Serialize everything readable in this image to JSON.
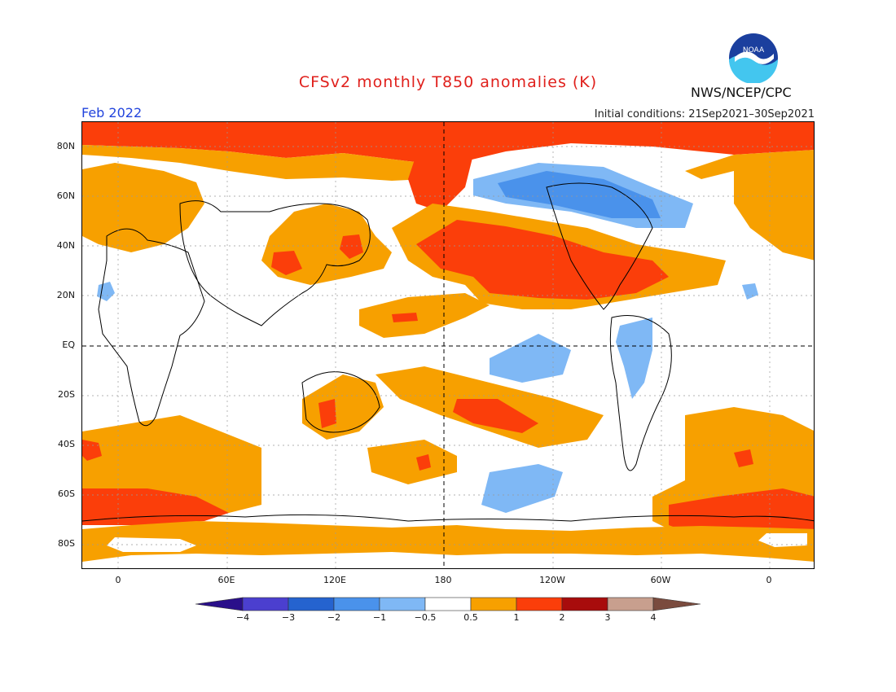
{
  "header": {
    "title": "CFSv2 monthly T850 anomalies (K)",
    "month": "Feb 2022",
    "initial_conditions": "Initial conditions: 21Sep2021–30Sep2021",
    "agency": "NWS/NCEP/CPC",
    "logo_text": "NOAA"
  },
  "map": {
    "lat_labels": [
      "80N",
      "60N",
      "40N",
      "20N",
      "EQ",
      "20S",
      "40S",
      "60S",
      "80S"
    ],
    "lon_labels": [
      "0",
      "60E",
      "120E",
      "180",
      "120W",
      "60W",
      "0"
    ]
  },
  "colorbar": {
    "unit": "K",
    "boundaries": [
      "−4",
      "−3",
      "−2",
      "−1",
      "−0.5",
      "0.5",
      "1",
      "2",
      "3",
      "4"
    ],
    "colors": {
      "lt_m4": "#2a0f8a",
      "m4_m3": "#4b3fcf",
      "m3_m2": "#2563cf",
      "m2_m1": "#4a92eb",
      "m1_m05": "#7fb8f5",
      "m05_05": "#ffffff",
      "p05_1": "#f7a000",
      "p1_2": "#fb3e0a",
      "p2_3": "#a80c0c",
      "p3_4": "#c89f8e",
      "gt_4": "#7a4b3e"
    }
  }
}
